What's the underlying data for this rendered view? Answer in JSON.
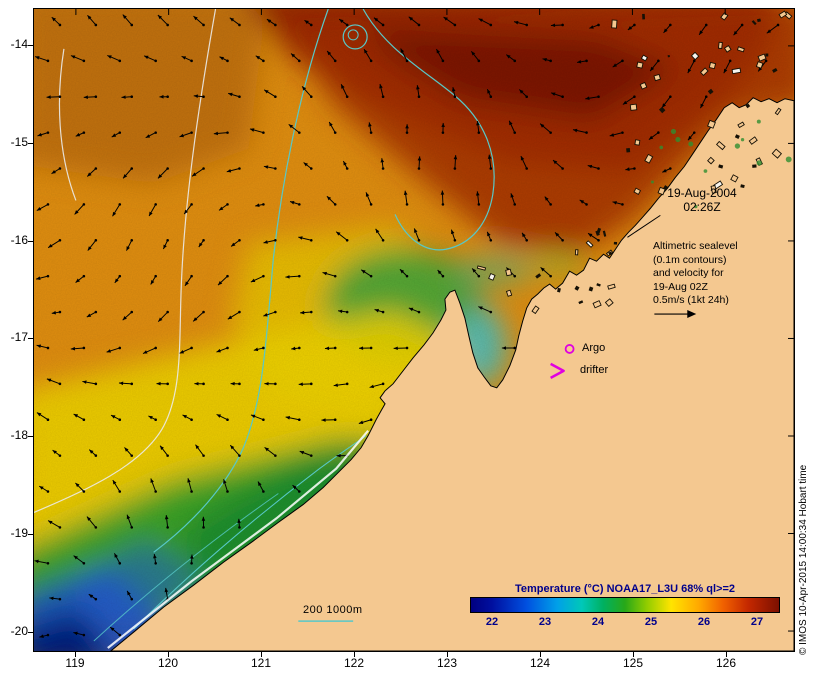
{
  "axes": {
    "x_ticks": [
      "119",
      "120",
      "121",
      "122",
      "123",
      "124",
      "125",
      "126"
    ],
    "y_ticks": [
      "-14",
      "-15",
      "-16",
      "-17",
      "-18",
      "-19",
      "-20"
    ]
  },
  "annotations": {
    "date_line1": "19-Aug-2004",
    "date_line2": "02:26Z",
    "note_lines": [
      "Altimetric sealevel",
      "(0.1m contours)",
      "and velocity for",
      "19-Aug 02Z",
      "0.5m/s (1kt 24h)"
    ],
    "argo_label": "Argo",
    "drifter_label": "drifter",
    "depth_legend": "200 1000m",
    "credit": "© IMOS 10-Apr-2015 14:00:34 Hobart time"
  },
  "colorbar": {
    "title": "Temperature (°C) NOAA17_L3U 68% ql>=2",
    "ticks": [
      "22",
      "23",
      "24",
      "25",
      "26",
      "27"
    ],
    "gradient_stops": [
      "#000080 0%",
      "#0010a0 7%",
      "#0050e0 18%",
      "#00a0e8 28%",
      "#00c8b8 36%",
      "#00b060 43%",
      "#28a818 50%",
      "#90cc00 57%",
      "#ffe400 65%",
      "#ffa800 74%",
      "#f06000 82%",
      "#c42800 90%",
      "#7c1000 100%"
    ],
    "text_color": "#00008B"
  },
  "map": {
    "land_color": "#F4C890",
    "sea_contour_color": "#58C8C8",
    "sealevel_contour_color": "#EAEAEA",
    "marker_color": "#E000E0",
    "arrow_color": "#000000"
  }
}
